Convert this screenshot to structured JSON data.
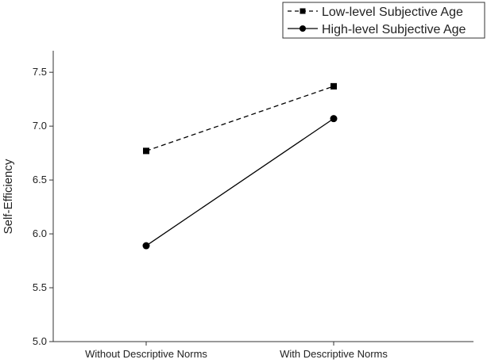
{
  "chart_data": {
    "type": "line",
    "title": "",
    "xlabel": "",
    "ylabel": "Self-Efficiency",
    "categories": [
      "Without Descriptive Norms",
      "With Descriptive Norms"
    ],
    "ylim": [
      5.0,
      7.7
    ],
    "yticks": [
      "5.0",
      "5.5",
      "6.0",
      "6.5",
      "7.0",
      "7.5"
    ],
    "grid": false,
    "legend_position": "top-right",
    "series": [
      {
        "name": "Low-level Subjective Age",
        "values": [
          6.77,
          7.37
        ],
        "line_style": "dashed",
        "marker": "square",
        "color": "#000000"
      },
      {
        "name": "High-level Subjective Age",
        "values": [
          5.89,
          7.07
        ],
        "line_style": "solid",
        "marker": "circle",
        "color": "#000000"
      }
    ]
  }
}
